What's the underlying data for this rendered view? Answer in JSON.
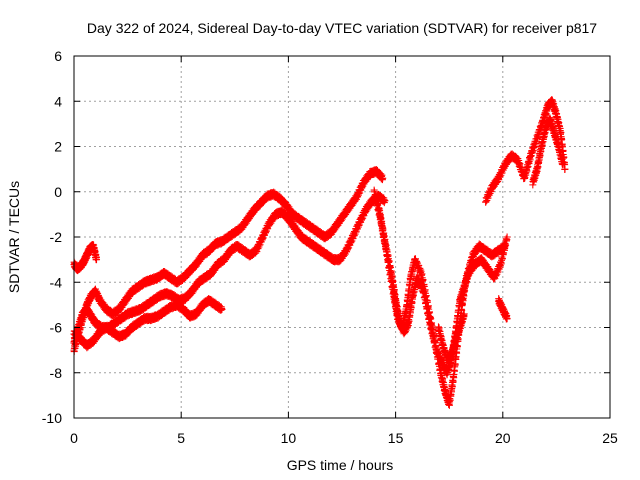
{
  "chart_data": {
    "type": "scatter",
    "title": "Day 322 of 2024, Sidereal Day-to-day VTEC variation (SDTVAR) for receiver p817",
    "xlabel": "GPS time / hours",
    "ylabel": "SDTVAR / TECUs",
    "xlim": [
      0,
      25
    ],
    "ylim": [
      -10,
      6
    ],
    "xticks": [
      "0",
      "5",
      "10",
      "15",
      "20",
      "25"
    ],
    "yticks": [
      "-10",
      "-8",
      "-6",
      "-4",
      "-2",
      "0",
      "2",
      "4",
      "6"
    ],
    "xtick_values": [
      0,
      5,
      10,
      15,
      20,
      25
    ],
    "ytick_values": [
      -10,
      -8,
      -6,
      -4,
      -2,
      0,
      2,
      4,
      6
    ],
    "grid": true,
    "marker": "+",
    "color": "#ff0000",
    "series": [
      {
        "x": [
          0.0,
          0.2,
          0.4,
          0.6,
          0.8,
          1.0,
          1.2,
          1.5,
          1.8,
          2.1,
          2.4,
          2.7,
          3.0,
          3.3,
          3.6,
          3.9,
          4.2,
          4.5,
          4.8,
          5.1,
          5.4,
          5.7,
          6.0,
          6.3,
          6.6,
          6.9,
          7.2,
          7.5,
          7.8,
          8.1,
          8.4,
          8.7,
          9.0,
          9.3,
          9.6,
          9.9,
          10.2,
          10.5,
          10.8,
          11.1,
          11.4,
          11.7,
          12.0,
          12.3,
          12.6,
          12.9,
          13.2,
          13.5,
          13.8,
          14.1,
          14.4
        ],
        "y": [
          -7.0,
          -6.3,
          -5.6,
          -5.0,
          -4.6,
          -4.4,
          -4.8,
          -5.2,
          -5.4,
          -5.2,
          -4.8,
          -4.4,
          -4.2,
          -4.0,
          -3.9,
          -3.8,
          -3.6,
          -3.8,
          -4.0,
          -3.8,
          -3.5,
          -3.2,
          -2.8,
          -2.6,
          -2.3,
          -2.2,
          -2.0,
          -1.8,
          -1.6,
          -1.2,
          -0.8,
          -0.5,
          -0.2,
          -0.1,
          -0.3,
          -0.6,
          -1.0,
          -1.2,
          -1.4,
          -1.6,
          -1.8,
          -2.0,
          -1.8,
          -1.4,
          -1.0,
          -0.6,
          -0.2,
          0.4,
          0.8,
          0.9,
          0.6
        ]
      },
      {
        "x": [
          0.0,
          0.2,
          0.4,
          0.6,
          0.8,
          1.0,
          1.3,
          1.6,
          1.9,
          2.2,
          2.5,
          2.8,
          3.1,
          3.4,
          3.7,
          4.0,
          4.3,
          4.6,
          4.9,
          5.2,
          5.5,
          5.8,
          6.1,
          6.4,
          6.7,
          7.0,
          7.3,
          7.6,
          7.9,
          8.2,
          8.5,
          8.8,
          9.1,
          9.4,
          9.7,
          10.0,
          10.3,
          10.6,
          10.9,
          11.2,
          11.5,
          11.8,
          12.1,
          12.4,
          12.7,
          13.0,
          13.3,
          13.6,
          13.9,
          14.2,
          14.5
        ],
        "y": [
          -6.6,
          -6.0,
          -5.4,
          -5.2,
          -5.5,
          -5.8,
          -6.0,
          -6.0,
          -5.8,
          -5.6,
          -5.4,
          -5.3,
          -5.2,
          -5.0,
          -4.8,
          -4.6,
          -4.5,
          -4.6,
          -4.8,
          -4.7,
          -4.4,
          -4.0,
          -3.8,
          -3.6,
          -3.2,
          -3.0,
          -2.6,
          -2.4,
          -2.6,
          -2.8,
          -2.6,
          -2.0,
          -1.4,
          -1.0,
          -0.9,
          -1.2,
          -1.6,
          -2.0,
          -2.2,
          -2.4,
          -2.6,
          -2.8,
          -3.0,
          -3.0,
          -2.6,
          -2.0,
          -1.4,
          -0.8,
          -0.4,
          -0.2,
          -0.4
        ]
      },
      {
        "x": [
          0.0,
          0.3,
          0.6,
          0.9,
          1.2,
          1.5,
          1.8,
          2.1,
          2.4,
          2.7,
          3.0,
          3.3,
          3.6,
          3.9,
          4.2,
          4.5,
          4.8,
          5.1,
          5.4,
          5.7,
          6.0,
          6.3,
          6.6,
          6.9
        ],
        "y": [
          -6.2,
          -6.5,
          -6.8,
          -6.6,
          -6.2,
          -6.0,
          -6.2,
          -6.4,
          -6.3,
          -6.0,
          -5.8,
          -5.6,
          -5.6,
          -5.5,
          -5.3,
          -5.1,
          -5.0,
          -5.2,
          -5.5,
          -5.4,
          -5.0,
          -4.8,
          -5.0,
          -5.2
        ]
      },
      {
        "x": [
          0.0,
          0.15,
          0.3,
          0.45,
          0.6,
          0.75,
          0.9,
          1.05
        ],
        "y": [
          -3.2,
          -3.4,
          -3.3,
          -3.1,
          -2.8,
          -2.5,
          -2.4,
          -3.0
        ]
      },
      {
        "x": [
          14.0,
          14.3,
          14.6,
          14.9,
          15.1,
          15.3,
          15.5,
          15.7,
          15.9,
          16.2,
          16.5,
          16.8,
          17.1,
          17.3,
          17.5,
          17.7,
          17.9,
          18.1,
          18.3,
          18.6,
          18.9,
          19.2,
          19.5,
          19.8,
          20.1
        ],
        "y": [
          0.0,
          -1.2,
          -2.8,
          -4.5,
          -5.6,
          -6.0,
          -5.2,
          -3.8,
          -3.0,
          -3.6,
          -5.0,
          -6.5,
          -8.0,
          -8.8,
          -9.4,
          -8.2,
          -6.6,
          -5.0,
          -3.8,
          -2.8,
          -2.4,
          -2.6,
          -2.8,
          -2.6,
          -2.4
        ]
      },
      {
        "x": [
          14.2,
          14.5,
          14.8,
          15.0,
          15.2,
          15.4,
          15.6,
          15.8,
          16.0,
          16.3,
          16.6,
          16.9,
          17.2,
          17.4,
          17.6,
          17.8,
          18.0,
          18.2,
          18.4,
          18.7,
          19.0,
          19.3,
          19.6,
          19.9,
          20.2
        ],
        "y": [
          -0.6,
          -2.2,
          -3.6,
          -4.8,
          -5.8,
          -6.2,
          -5.8,
          -4.6,
          -3.8,
          -4.4,
          -5.8,
          -7.0,
          -7.6,
          -8.0,
          -7.4,
          -6.2,
          -4.8,
          -4.2,
          -3.6,
          -3.2,
          -3.0,
          -3.4,
          -3.8,
          -3.2,
          -2.0
        ]
      },
      {
        "x": [
          17.0,
          17.2,
          17.4,
          17.6,
          17.8,
          18.0,
          18.2
        ],
        "y": [
          -6.0,
          -6.8,
          -7.4,
          -7.2,
          -6.6,
          -6.0,
          -5.4
        ]
      },
      {
        "x": [
          19.2,
          19.5,
          19.8,
          20.1,
          20.4,
          20.7,
          21.0,
          21.3,
          21.6,
          21.9,
          22.1,
          22.3,
          22.5,
          22.7,
          22.9
        ],
        "y": [
          -0.4,
          0.2,
          0.6,
          1.2,
          1.6,
          1.4,
          0.6,
          1.6,
          2.4,
          3.2,
          3.8,
          4.0,
          3.4,
          2.6,
          1.0
        ]
      },
      {
        "x": [
          21.4,
          21.6,
          21.8,
          22.0,
          22.2,
          22.4,
          22.6,
          22.8
        ],
        "y": [
          0.4,
          1.0,
          2.0,
          2.8,
          3.2,
          2.6,
          2.0,
          1.2
        ]
      },
      {
        "x": [
          19.8,
          20.0,
          20.2
        ],
        "y": [
          -4.8,
          -5.2,
          -5.6
        ]
      }
    ]
  }
}
